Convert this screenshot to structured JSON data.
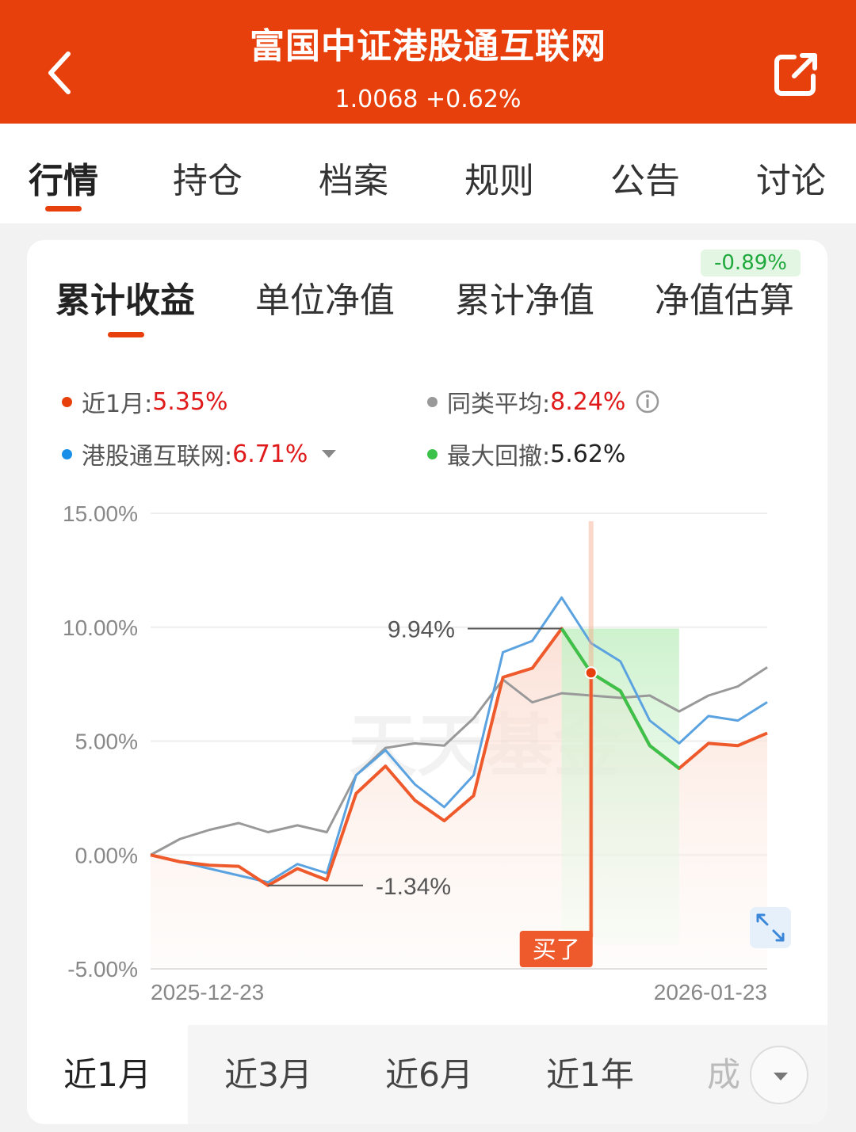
{
  "header": {
    "title": "富国中证港股通互联网",
    "subtitle": "1.0068 +0.62%"
  },
  "tabs": [
    {
      "label": "行情"
    },
    {
      "label": "持仓"
    },
    {
      "label": "档案"
    },
    {
      "label": "规则"
    },
    {
      "label": "公告"
    },
    {
      "label": "讨论"
    }
  ],
  "subtabs": [
    {
      "label": "累计收益"
    },
    {
      "label": "单位净值"
    },
    {
      "label": "累计净值"
    },
    {
      "label": "净值估算"
    }
  ],
  "estimate_badge": "-0.89%",
  "legend": {
    "fund": {
      "label": "近1月:",
      "value": "5.35%",
      "color": "#e8400c"
    },
    "peer": {
      "label": "同类平均:",
      "value": "8.24%",
      "color": "#999999"
    },
    "index": {
      "label": "港股通互联网:",
      "value": "6.71%",
      "color": "#1a8fe8"
    },
    "drawdown": {
      "label": "最大回撤:",
      "value": "5.62%",
      "color": "#3cc24a"
    }
  },
  "chart_data": {
    "type": "line",
    "y_ticks": [
      "15.00%",
      "10.00%",
      "5.00%",
      "0.00%",
      "-5.00%"
    ],
    "ylim": [
      -5,
      15
    ],
    "x_start_label": "2025-12-23",
    "x_end_label": "2026-01-23",
    "series": [
      {
        "name": "近1月",
        "color": "#ee5a2c",
        "values": [
          0,
          -0.3,
          -0.45,
          -0.5,
          -1.34,
          -0.6,
          -1.1,
          2.7,
          3.9,
          2.4,
          1.5,
          2.6,
          7.8,
          8.2,
          9.94,
          8.0,
          7.2,
          4.8,
          3.8,
          4.9,
          4.8,
          5.35
        ]
      },
      {
        "name": "同类平均",
        "color": "#999999",
        "values": [
          0,
          0.7,
          1.1,
          1.4,
          1.0,
          1.3,
          1.0,
          3.5,
          4.7,
          4.9,
          4.8,
          6.0,
          7.7,
          6.7,
          7.1,
          7.0,
          6.9,
          7.0,
          6.3,
          7.0,
          7.4,
          8.24
        ]
      },
      {
        "name": "港股通互联网",
        "color": "#5aa2e0",
        "values": [
          0,
          -0.3,
          -0.6,
          -0.9,
          -1.2,
          -0.4,
          -0.8,
          3.5,
          4.6,
          3.1,
          2.1,
          3.5,
          8.9,
          9.4,
          11.3,
          9.3,
          8.5,
          5.9,
          4.9,
          6.1,
          5.9,
          6.71
        ]
      }
    ],
    "annotations": {
      "max_label": "9.94%",
      "min_label": "-1.34%",
      "buy_label": "买了"
    },
    "drawdown_range": [
      14,
      18
    ],
    "buy_index": 15,
    "watermark": "天天基金"
  },
  "periods": [
    {
      "label": "近1月"
    },
    {
      "label": "近3月"
    },
    {
      "label": "近6月"
    },
    {
      "label": "近1年"
    },
    {
      "label": "成"
    }
  ]
}
